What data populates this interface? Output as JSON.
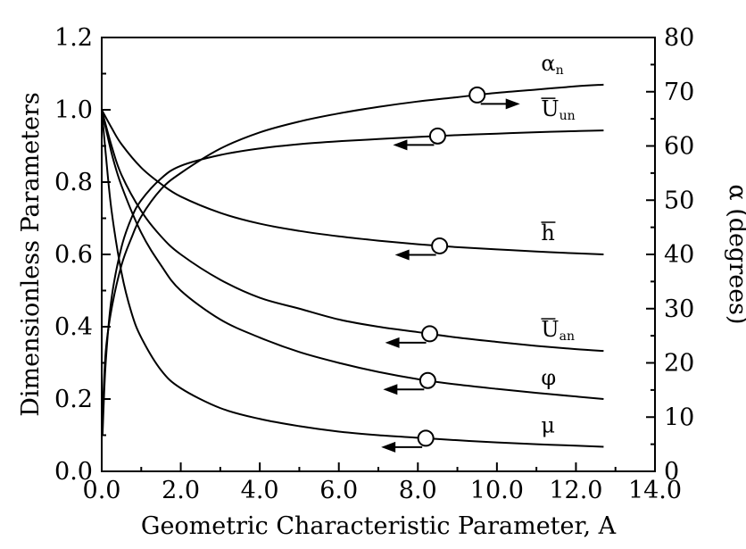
{
  "chart_data": {
    "type": "line",
    "xlabel": "Geometric Characteristic Parameter, A",
    "ylabel": "Dimensionless Parameters",
    "y2label": "α (degrees)",
    "xlim": [
      0.0,
      14.0
    ],
    "ylim": [
      0.0,
      1.2
    ],
    "y2lim": [
      0,
      80
    ],
    "x_ticks": [
      "0.0",
      "2.0",
      "4.0",
      "6.0",
      "8.0",
      "10.0",
      "12.0",
      "14.0"
    ],
    "y_ticks": [
      "0.0",
      "0.2",
      "0.4",
      "0.6",
      "0.8",
      "1.0",
      "1.2"
    ],
    "y2_ticks": [
      "0",
      "10",
      "20",
      "30",
      "40",
      "50",
      "60",
      "70",
      "80"
    ],
    "series": [
      {
        "name": "α",
        "sub": "n",
        "axis": "right",
        "marker_x": 9.5,
        "arrow": "right",
        "x": [
          0.02,
          0.1,
          0.25,
          0.5,
          0.75,
          1.0,
          1.5,
          2.0,
          3.0,
          4.0,
          5.0,
          6.0,
          7.0,
          8.0,
          9.0,
          10.0,
          11.0,
          12.0,
          12.7
        ],
        "y": [
          10,
          22,
          30,
          38,
          43,
          47,
          52,
          55,
          59.5,
          62.5,
          64.5,
          66,
          67.2,
          68.2,
          69,
          69.8,
          70.4,
          71,
          71.3
        ]
      },
      {
        "name": "U",
        "overline": true,
        "sub": "un",
        "axis": "left",
        "marker_x": 8.5,
        "arrow": "left",
        "x": [
          0.02,
          0.1,
          0.25,
          0.5,
          0.75,
          1.0,
          1.5,
          2.0,
          3.0,
          4.0,
          5.0,
          6.0,
          7.0,
          8.0,
          9.0,
          10.0,
          11.0,
          12.0,
          12.7
        ],
        "y": [
          0.1,
          0.3,
          0.48,
          0.62,
          0.7,
          0.75,
          0.81,
          0.845,
          0.875,
          0.893,
          0.905,
          0.913,
          0.919,
          0.925,
          0.93,
          0.934,
          0.938,
          0.941,
          0.943
        ]
      },
      {
        "name": "h",
        "overline": true,
        "sub": "",
        "axis": "left",
        "marker_x": 8.55,
        "arrow": "left",
        "x": [
          0.0,
          0.25,
          0.5,
          1.0,
          1.5,
          2.0,
          3.0,
          4.0,
          5.0,
          6.0,
          7.0,
          8.0,
          9.0,
          10.0,
          11.0,
          12.0,
          12.7
        ],
        "y": [
          1.0,
          0.95,
          0.905,
          0.84,
          0.795,
          0.76,
          0.715,
          0.685,
          0.665,
          0.65,
          0.638,
          0.628,
          0.62,
          0.614,
          0.608,
          0.603,
          0.6
        ]
      },
      {
        "name": "U",
        "overline": true,
        "sub": "an",
        "axis": "left",
        "marker_x": 8.3,
        "arrow": "left",
        "x": [
          0.0,
          0.25,
          0.5,
          1.0,
          1.5,
          2.0,
          3.0,
          4.0,
          5.0,
          6.0,
          7.0,
          8.0,
          9.0,
          10.0,
          11.0,
          12.0,
          12.7
        ],
        "y": [
          1.0,
          0.9,
          0.82,
          0.72,
          0.65,
          0.6,
          0.53,
          0.48,
          0.45,
          0.42,
          0.4,
          0.385,
          0.37,
          0.358,
          0.347,
          0.338,
          0.333
        ]
      },
      {
        "name": "φ",
        "sub": "",
        "axis": "left",
        "marker_x": 8.25,
        "arrow": "left",
        "x": [
          0.0,
          0.25,
          0.5,
          1.0,
          1.5,
          2.0,
          3.0,
          4.0,
          5.0,
          6.0,
          7.0,
          8.0,
          9.0,
          10.0,
          11.0,
          12.0,
          12.7
        ],
        "y": [
          1.0,
          0.88,
          0.79,
          0.66,
          0.57,
          0.5,
          0.42,
          0.37,
          0.33,
          0.3,
          0.275,
          0.255,
          0.24,
          0.228,
          0.217,
          0.207,
          0.2
        ]
      },
      {
        "name": "μ",
        "sub": "",
        "axis": "left",
        "marker_x": 8.2,
        "arrow": "left",
        "x": [
          0.0,
          0.1,
          0.25,
          0.5,
          0.75,
          1.0,
          1.5,
          2.0,
          3.0,
          4.0,
          5.0,
          6.0,
          7.0,
          8.0,
          9.0,
          10.0,
          11.0,
          12.0,
          12.7
        ],
        "y": [
          1.0,
          0.88,
          0.72,
          0.55,
          0.44,
          0.37,
          0.28,
          0.23,
          0.175,
          0.145,
          0.125,
          0.11,
          0.1,
          0.093,
          0.086,
          0.08,
          0.075,
          0.071,
          0.068
        ]
      }
    ]
  }
}
